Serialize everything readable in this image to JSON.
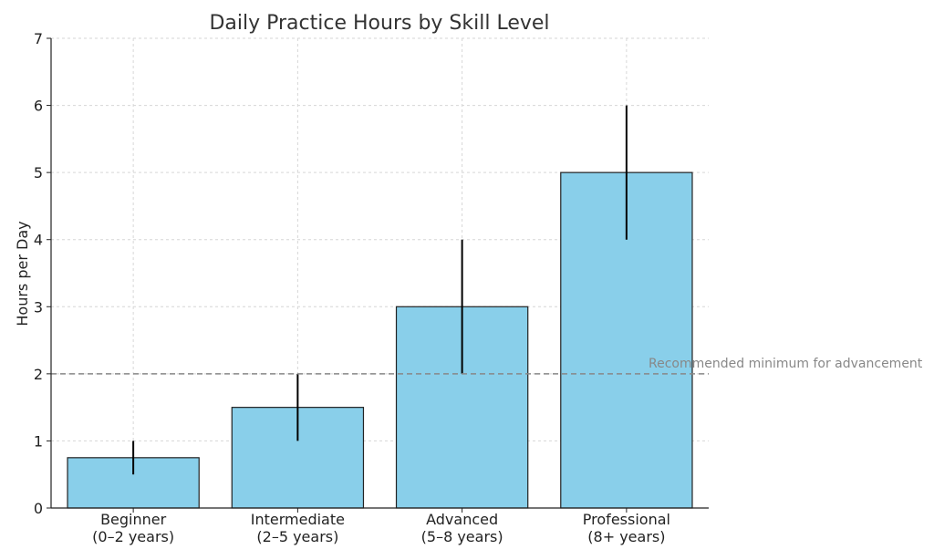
{
  "chart_data": {
    "type": "bar",
    "title": "Daily Practice Hours by Skill Level",
    "xlabel": "",
    "ylabel": "Hours per Day",
    "categories": [
      [
        "Beginner",
        "(0–2 years)"
      ],
      [
        "Intermediate",
        "(2–5 years)"
      ],
      [
        "Advanced",
        "(5–8 years)"
      ],
      [
        "Professional",
        "(8+ years)"
      ]
    ],
    "values": [
      0.75,
      1.5,
      3,
      5
    ],
    "error_bars": [
      {
        "low": 0.5,
        "high": 1
      },
      {
        "low": 1,
        "high": 2
      },
      {
        "low": 2,
        "high": 4
      },
      {
        "low": 4,
        "high": 6
      }
    ],
    "ylim": [
      0,
      7
    ],
    "yticks": [
      0,
      1,
      2,
      3,
      4,
      5,
      6,
      7
    ],
    "grid": true,
    "reference_line": {
      "value": 2,
      "label": "Recommended minimum for advancement"
    },
    "colors": {
      "bar": "#89CFEA",
      "bar_edge": "#222222",
      "error": "#000000",
      "grid": "#d6d6d6",
      "reference": "#888888"
    }
  }
}
